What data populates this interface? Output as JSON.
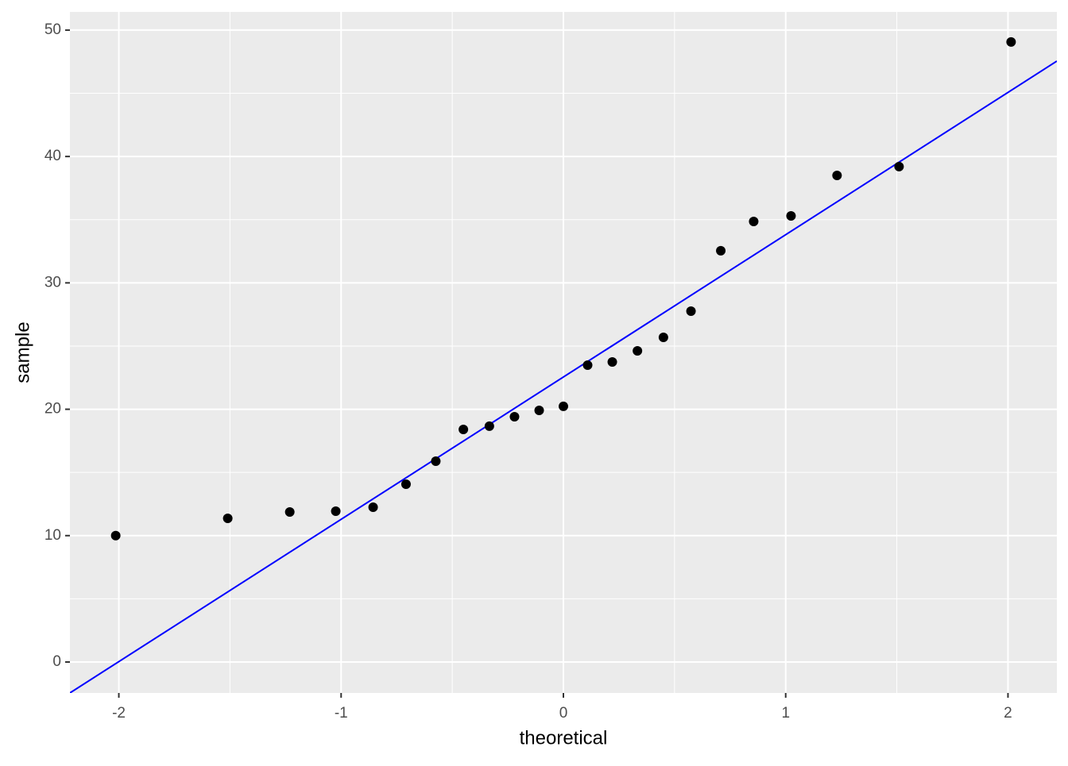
{
  "chart_data": {
    "type": "qq",
    "x_label": "theoretical",
    "y_label": "sample",
    "x": [
      -2.014,
      -1.51,
      -1.231,
      -1.024,
      -0.856,
      -0.708,
      -0.574,
      -0.45,
      -0.333,
      -0.22,
      -0.109,
      0,
      0.109,
      0.22,
      0.333,
      0.45,
      0.574,
      0.708,
      0.856,
      1.024,
      1.231,
      1.51,
      2.014
    ],
    "values": [
      10.0,
      11.37,
      11.87,
      11.93,
      12.25,
      14.07,
      15.89,
      18.4,
      18.66,
      19.41,
      19.91,
      20.23,
      23.49,
      23.74,
      24.62,
      25.69,
      27.76,
      32.54,
      34.86,
      35.3,
      38.5,
      39.2,
      49.06
    ],
    "color": "#000000",
    "line": {
      "intercept": 22.55,
      "slope": 11.26,
      "color": "#0000ff"
    },
    "xlim": [
      -2.22,
      2.22
    ],
    "ylim": [
      -2.45,
      51.44
    ],
    "xticks": [
      -2,
      -1,
      0,
      1,
      2
    ],
    "yticks": [
      0,
      10,
      20,
      30,
      40,
      50
    ],
    "x_minor_grid": [
      -1.5,
      -0.5,
      0.5,
      1.5
    ],
    "y_minor_grid": [
      5,
      15,
      25,
      35,
      45
    ],
    "grid": true
  }
}
